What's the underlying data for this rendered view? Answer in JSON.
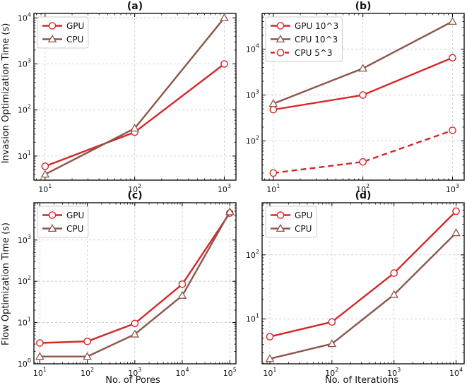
{
  "colors": {
    "gpu": "#d62728",
    "cpu": "#8c564b"
  },
  "labels": {
    "ylabel_top": "Invasion Optimization Time (s)",
    "ylabel_bottom": "Flow Optimization Time (s)",
    "xlabel_left": "No. of Pores",
    "xlabel_right": "No. of Iterations"
  },
  "chart_data": [
    {
      "panel": "a",
      "title": "(a)",
      "type": "line",
      "xscale": "log",
      "yscale": "log",
      "xlim": [
        7.5,
        1350
      ],
      "ylim": [
        3,
        12500
      ],
      "xticks": [
        10,
        100,
        1000
      ],
      "xtick_labels": [
        [
          "10",
          "1"
        ],
        [
          "10",
          "2"
        ],
        [
          "10",
          "3"
        ]
      ],
      "yticks": [
        10,
        100,
        1000,
        10000
      ],
      "ytick_labels": [
        [
          "10",
          "1"
        ],
        [
          "10",
          "2"
        ],
        [
          "10",
          "3"
        ],
        [
          "10",
          "4"
        ]
      ],
      "legend": "top-left",
      "series": [
        {
          "name": "GPU",
          "color": "gpu",
          "marker": "circle",
          "dash": false,
          "x": [
            10,
            100,
            1000
          ],
          "y": [
            6,
            33,
            1000
          ]
        },
        {
          "name": "CPU",
          "color": "cpu",
          "marker": "triangle",
          "dash": false,
          "x": [
            10,
            100,
            1000
          ],
          "y": [
            4,
            40,
            10000
          ]
        }
      ]
    },
    {
      "panel": "b",
      "title": "(b)",
      "type": "line",
      "xscale": "log",
      "yscale": "log",
      "xlim": [
        7.5,
        1350
      ],
      "ylim": [
        14,
        60000
      ],
      "xticks": [
        10,
        100,
        1000
      ],
      "xtick_labels": [
        [
          "10",
          "1"
        ],
        [
          "10",
          "2"
        ],
        [
          "10",
          "3"
        ]
      ],
      "yticks": [
        100,
        1000,
        10000
      ],
      "ytick_labels": [
        [
          "10",
          "2"
        ],
        [
          "10",
          "3"
        ],
        [
          "10",
          "4"
        ]
      ],
      "legend": "top-left",
      "series": [
        {
          "name": "GPU 10^3",
          "color": "gpu",
          "marker": "circle",
          "dash": false,
          "x": [
            10,
            100,
            1000
          ],
          "y": [
            480,
            1000,
            6500
          ]
        },
        {
          "name": "CPU 10^3",
          "color": "cpu",
          "marker": "triangle",
          "dash": false,
          "x": [
            10,
            100,
            1000
          ],
          "y": [
            650,
            3800,
            40000
          ]
        },
        {
          "name": "CPU 5^3",
          "color": "gpu",
          "marker": "circle",
          "dash": true,
          "x": [
            10,
            100,
            1000
          ],
          "y": [
            20,
            35,
            170
          ]
        }
      ]
    },
    {
      "panel": "c",
      "title": "(c)",
      "type": "line",
      "xscale": "log",
      "yscale": "log",
      "xlim": [
        7.5,
        135000
      ],
      "ylim": [
        1,
        8000
      ],
      "xticks": [
        10,
        100,
        1000,
        10000,
        100000
      ],
      "xtick_labels": [
        [
          "10",
          "1"
        ],
        [
          "10",
          "2"
        ],
        [
          "10",
          "3"
        ],
        [
          "10",
          "4"
        ],
        [
          "10",
          "5"
        ]
      ],
      "yticks": [
        1,
        10,
        100,
        1000
      ],
      "ytick_labels": [
        [
          "10",
          "0"
        ],
        [
          "10",
          "1"
        ],
        [
          "10",
          "2"
        ],
        [
          "10",
          "3"
        ]
      ],
      "legend": "top-left",
      "series": [
        {
          "name": "GPU",
          "color": "gpu",
          "marker": "circle",
          "dash": false,
          "x": [
            10,
            100,
            1000,
            10000,
            100000
          ],
          "y": [
            3.2,
            3.5,
            9.5,
            85,
            4500
          ]
        },
        {
          "name": "CPU",
          "color": "cpu",
          "marker": "triangle",
          "dash": false,
          "x": [
            10,
            100,
            1000,
            10000,
            100000
          ],
          "y": [
            1.5,
            1.5,
            5.2,
            45,
            4800
          ]
        }
      ]
    },
    {
      "panel": "d",
      "title": "(d)",
      "type": "line",
      "xscale": "log",
      "yscale": "log",
      "xlim": [
        7.5,
        13500
      ],
      "ylim": [
        2,
        650
      ],
      "xticks": [
        10,
        100,
        1000,
        10000
      ],
      "xtick_labels": [
        [
          "10",
          "1"
        ],
        [
          "10",
          "2"
        ],
        [
          "10",
          "3"
        ],
        [
          "10",
          "4"
        ]
      ],
      "yticks": [
        10,
        100
      ],
      "ytick_labels": [
        [
          "10",
          "1"
        ],
        [
          "10",
          "2"
        ]
      ],
      "legend": "top-left",
      "series": [
        {
          "name": "GPU",
          "color": "gpu",
          "marker": "circle",
          "dash": false,
          "x": [
            10,
            100,
            1000,
            10000
          ],
          "y": [
            5.3,
            9,
            52,
            480
          ]
        },
        {
          "name": "CPU",
          "color": "cpu",
          "marker": "triangle",
          "dash": false,
          "x": [
            10,
            100,
            1000,
            10000
          ],
          "y": [
            2.4,
            4.1,
            24,
            220
          ]
        }
      ]
    }
  ]
}
